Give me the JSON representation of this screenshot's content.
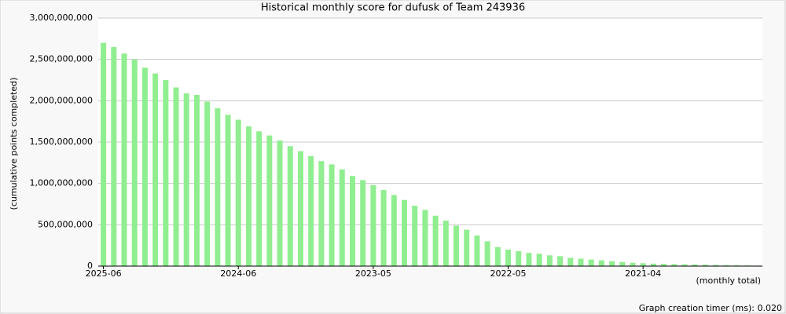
{
  "chart_data": {
    "type": "bar",
    "title": "Historical monthly score for dufusk of Team 243936",
    "y_label": "(cumulative points completed)",
    "x_label": "(monthly total)",
    "footer": "Graph creation timer (ms): 0.020",
    "color": "#90ee90",
    "grid": true,
    "categories": [
      "2025-06",
      null,
      null,
      null,
      null,
      null,
      null,
      null,
      null,
      null,
      null,
      null,
      null,
      "2024-06",
      null,
      null,
      null,
      null,
      null,
      null,
      null,
      null,
      null,
      null,
      null,
      null,
      "2023-05",
      null,
      null,
      null,
      null,
      null,
      null,
      null,
      null,
      null,
      null,
      null,
      null,
      "2022-05",
      null,
      null,
      null,
      null,
      null,
      null,
      null,
      null,
      null,
      null,
      null,
      null,
      "2021-04",
      null,
      null,
      null,
      null,
      null,
      null,
      null,
      null,
      null,
      null,
      null
    ],
    "values": [
      2700000000,
      2650000000,
      2570000000,
      2500000000,
      2400000000,
      2330000000,
      2250000000,
      2160000000,
      2090000000,
      2070000000,
      1990000000,
      1910000000,
      1830000000,
      1770000000,
      1690000000,
      1630000000,
      1580000000,
      1520000000,
      1450000000,
      1390000000,
      1330000000,
      1270000000,
      1230000000,
      1170000000,
      1090000000,
      1040000000,
      980000000,
      920000000,
      860000000,
      800000000,
      730000000,
      680000000,
      610000000,
      550000000,
      490000000,
      440000000,
      370000000,
      300000000,
      230000000,
      200000000,
      180000000,
      160000000,
      150000000,
      130000000,
      120000000,
      100000000,
      90000000,
      80000000,
      70000000,
      60000000,
      50000000,
      40000000,
      35000000,
      30000000,
      28000000,
      25000000,
      22000000,
      20000000,
      18000000,
      15000000,
      12000000,
      10000000,
      8000000,
      6000000
    ],
    "ylim": [
      0,
      3000000000
    ],
    "yticks": [
      0,
      {
        "value": 500000000,
        "label": "500,000,000"
      },
      {
        "value": 1000000000,
        "label": "1,000,000,000"
      },
      {
        "value": 1500000000,
        "label": "1,500,000,000"
      },
      {
        "value": 2000000000,
        "label": "2,000,000,000"
      },
      {
        "value": 2500000000,
        "label": "2,500,000,000"
      },
      {
        "value": 3000000000,
        "label": "3,000,000,000"
      }
    ]
  }
}
